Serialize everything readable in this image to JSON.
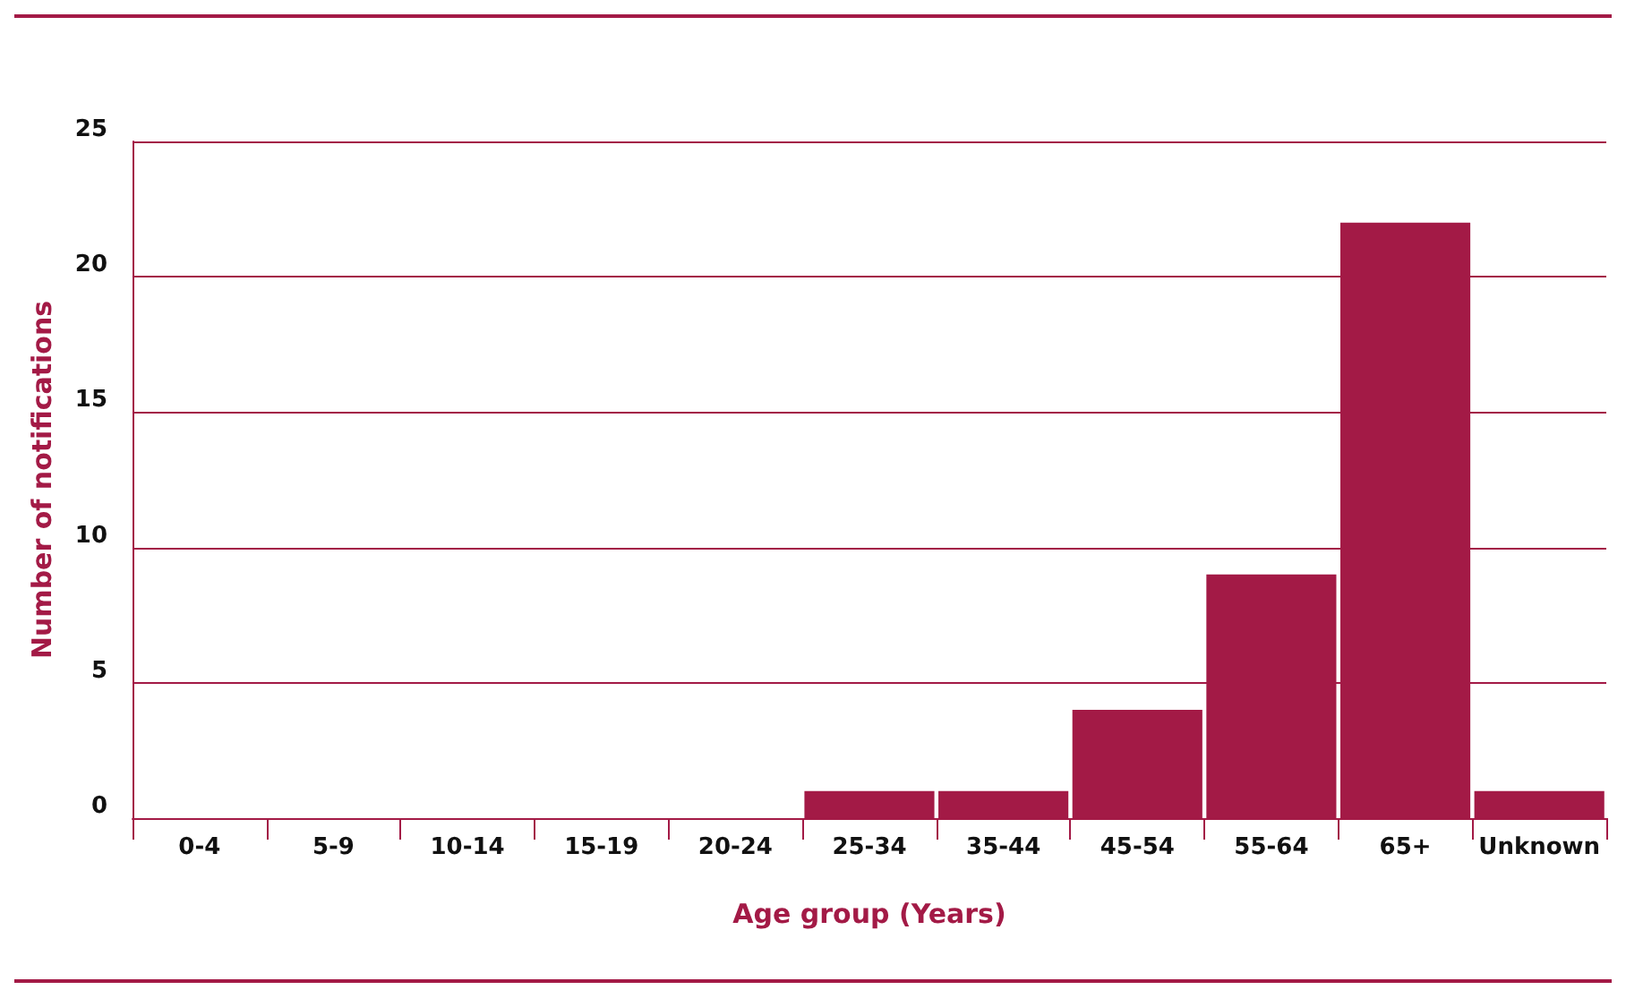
{
  "chart_data": {
    "type": "bar",
    "xlabel": "Age group (Years)",
    "ylabel": "Number of notifications",
    "categories": [
      "0-4",
      "5-9",
      "10-14",
      "15-19",
      "20-24",
      "25-34",
      "35-44",
      "45-54",
      "55-64",
      "65+",
      "Unknown"
    ],
    "values": [
      0,
      0,
      0,
      0,
      0,
      1,
      1,
      4,
      9,
      22,
      1
    ],
    "color": "#a31a46",
    "ylim": [
      0,
      25
    ],
    "yticks": [
      0,
      5,
      10,
      15,
      20,
      25
    ],
    "grid": "y"
  }
}
